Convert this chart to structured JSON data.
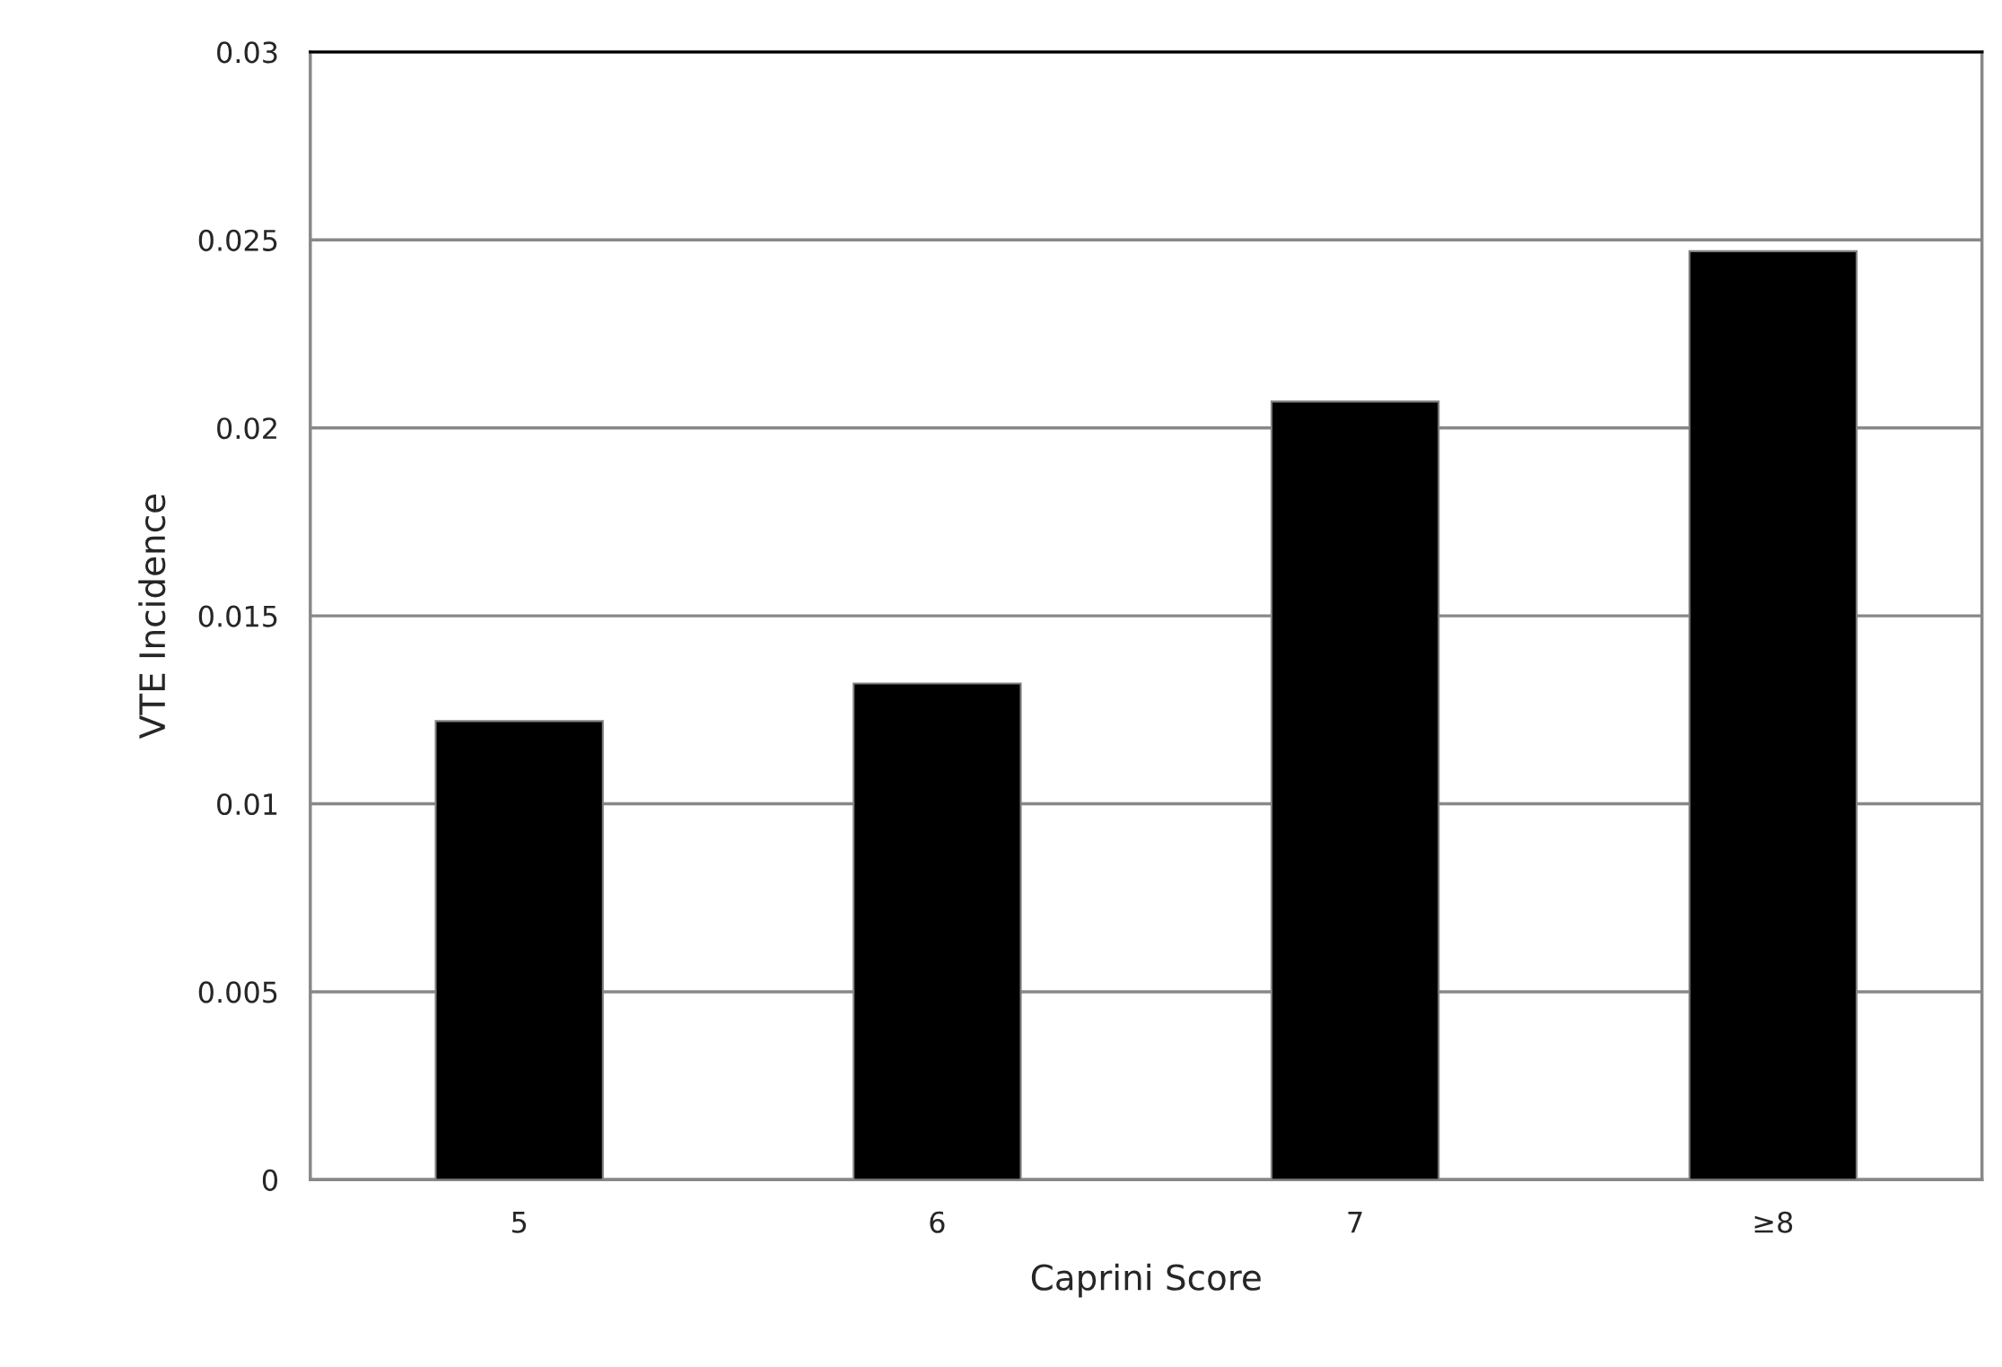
{
  "chart_data": {
    "type": "bar",
    "xlabel": "Caprini Score",
    "ylabel": "VTE Incidence",
    "categories": [
      "5",
      "6",
      "7",
      "≥8"
    ],
    "values": [
      0.0122,
      0.0132,
      0.0207,
      0.0247
    ],
    "color": "#000000",
    "ylim": [
      0,
      0.03
    ],
    "yticks": [
      0,
      0.005,
      0.01,
      0.015,
      0.02,
      0.025,
      0.03
    ],
    "grid": "y"
  }
}
